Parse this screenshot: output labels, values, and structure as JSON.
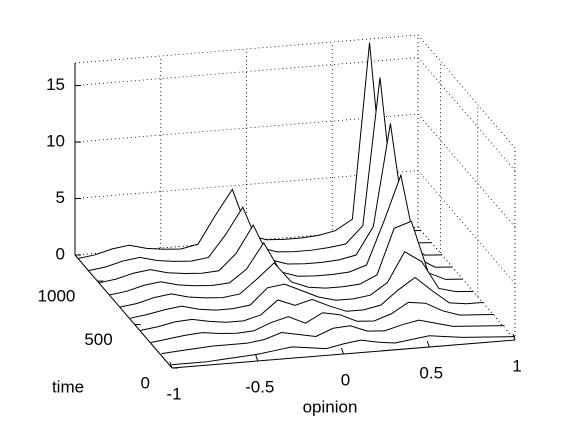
{
  "chart_data": {
    "type": "waterfall3d",
    "xlabel": "opinion",
    "ylabel": "time",
    "xlim": [
      -1,
      1
    ],
    "xticks": [
      -1,
      -0.5,
      0,
      0.5,
      1
    ],
    "ylim": [
      0,
      1300
    ],
    "yticks": [
      0,
      500,
      1000
    ],
    "zlim": [
      0,
      17
    ],
    "zticks": [
      0,
      5,
      10,
      15
    ],
    "grid": true,
    "color": "#000000",
    "x": [
      -1,
      -0.9,
      -0.8,
      -0.7,
      -0.6,
      -0.5,
      -0.4,
      -0.3,
      -0.2,
      -0.1,
      0,
      0.1,
      0.2,
      0.3,
      0.4,
      0.5,
      0.6,
      0.7,
      0.8,
      0.9,
      1
    ],
    "curves": [
      {
        "time": 0,
        "values": [
          0.3,
          0.3,
          0.3,
          0.4,
          0.5,
          0.6,
          0.8,
          1.0,
          0.8,
          0.6,
          0.9,
          1.1,
          0.8,
          0.6,
          0.8,
          1.0,
          0.8,
          0.6,
          0.5,
          0.4,
          0.3
        ]
      },
      {
        "time": 140,
        "values": [
          0.2,
          0.3,
          0.4,
          0.5,
          0.5,
          0.5,
          0.7,
          1.2,
          0.9,
          0.6,
          1.2,
          1.3,
          0.7,
          0.6,
          1.0,
          1.3,
          0.9,
          0.5,
          0.4,
          0.3,
          0.2
        ]
      },
      {
        "time": 280,
        "values": [
          0.1,
          0.3,
          0.5,
          0.6,
          0.4,
          0.3,
          0.4,
          1.0,
          1.4,
          0.7,
          1.5,
          1.2,
          0.5,
          0.4,
          0.9,
          1.8,
          1.6,
          0.8,
          0.3,
          0.2,
          0.1
        ]
      },
      {
        "time": 420,
        "values": [
          0.1,
          0.3,
          0.6,
          0.7,
          0.4,
          0.2,
          0.2,
          0.6,
          1.8,
          1.2,
          1.6,
          0.9,
          0.3,
          0.3,
          0.6,
          1.8,
          2.8,
          1.5,
          0.3,
          0.1,
          0.1
        ]
      },
      {
        "time": 560,
        "values": [
          0.1,
          0.3,
          0.6,
          0.8,
          0.4,
          0.2,
          0.2,
          0.4,
          1.8,
          2.0,
          1.3,
          0.6,
          0.2,
          0.2,
          0.4,
          1.4,
          4.0,
          3.0,
          0.5,
          0.1,
          0.0
        ]
      },
      {
        "time": 700,
        "values": [
          0.0,
          0.2,
          0.6,
          0.8,
          0.4,
          0.2,
          0.1,
          0.3,
          1.5,
          2.8,
          1.0,
          0.4,
          0.2,
          0.2,
          0.3,
          1.0,
          5.0,
          5.5,
          0.8,
          0.1,
          0.0
        ]
      },
      {
        "time": 840,
        "values": [
          0.0,
          0.2,
          0.6,
          0.8,
          0.4,
          0.2,
          0.1,
          0.2,
          1.3,
          3.5,
          0.8,
          0.3,
          0.2,
          0.2,
          0.3,
          0.8,
          4.5,
          8.5,
          1.0,
          0.1,
          0.0
        ]
      },
      {
        "time": 980,
        "values": [
          0.0,
          0.2,
          0.6,
          0.8,
          0.4,
          0.2,
          0.1,
          0.2,
          1.6,
          4.0,
          0.8,
          0.3,
          0.2,
          0.2,
          0.3,
          0.6,
          3.0,
          12.0,
          1.2,
          0.1,
          0.0
        ]
      },
      {
        "time": 1120,
        "values": [
          0.0,
          0.2,
          0.6,
          0.8,
          0.4,
          0.2,
          0.1,
          0.3,
          2.2,
          4.5,
          0.8,
          0.3,
          0.2,
          0.2,
          0.3,
          0.5,
          2.0,
          15.0,
          1.0,
          0.1,
          0.0
        ]
      },
      {
        "time": 1260,
        "values": [
          0.0,
          0.2,
          0.6,
          0.8,
          0.4,
          0.2,
          0.1,
          0.4,
          2.8,
          5.0,
          0.8,
          0.3,
          0.2,
          0.2,
          0.3,
          0.6,
          1.5,
          17.0,
          0.8,
          0.1,
          0.0
        ]
      }
    ]
  }
}
